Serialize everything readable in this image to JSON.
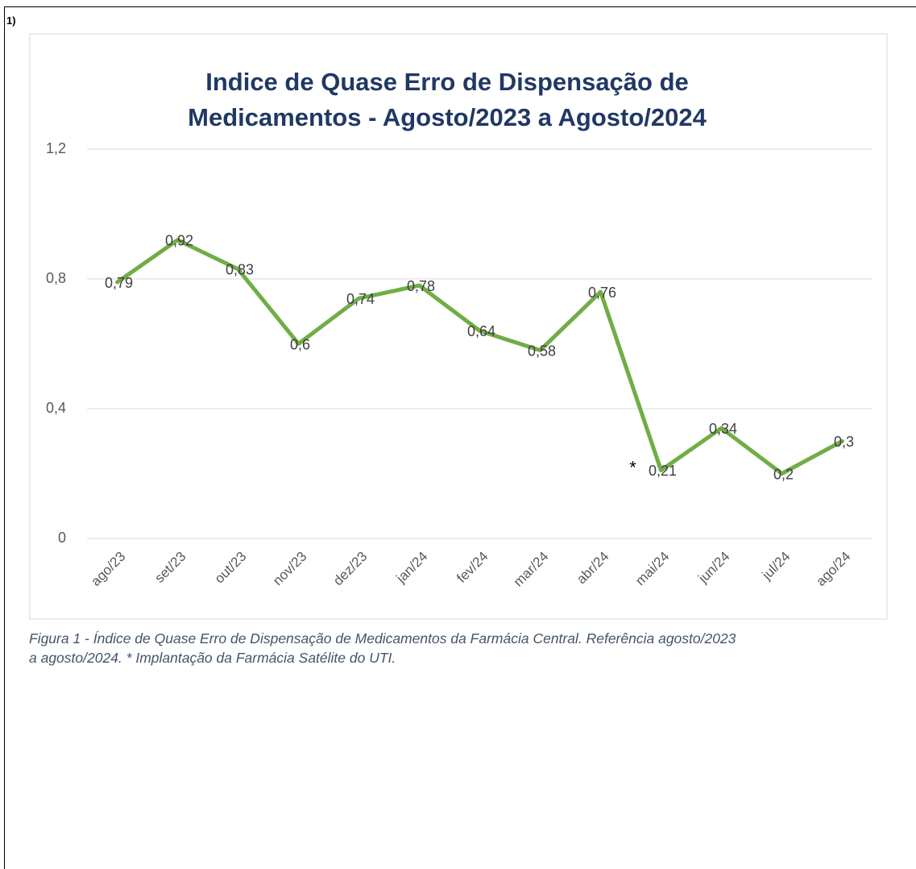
{
  "label": "1)",
  "chart_data": {
    "type": "line",
    "title": [
      "Indice de Quase Erro de Dispensação de",
      "Medicamentos - Agosto/2023 a Agosto/2024"
    ],
    "categories": [
      "ago/23",
      "set/23",
      "out/23",
      "nov/23",
      "dez/23",
      "jan/24",
      "fev/24",
      "mar/24",
      "abr/24",
      "mai/24",
      "jun/24",
      "jul/24",
      "ago/24"
    ],
    "values": [
      0.79,
      0.92,
      0.83,
      0.6,
      0.74,
      0.78,
      0.64,
      0.58,
      0.76,
      0.21,
      0.34,
      0.2,
      0.3
    ],
    "value_labels": [
      "0,79",
      "0,92",
      "0,83",
      "0,6",
      "0,74",
      "0,78",
      "0,64",
      "0,58",
      "0,76",
      "0,21",
      "0,34",
      "0,2",
      "0,3"
    ],
    "color": "#70ad47",
    "ylim": [
      0,
      1.2
    ],
    "yticks": [
      0,
      {
        "value": 0.4,
        "label": "0,4"
      },
      {
        "value": 0.8,
        "label": "0,8"
      },
      {
        "value": 1.2,
        "label": "1,2"
      }
    ],
    "grid": true,
    "annotation": "*"
  },
  "caption": [
    "Figura 1 - Índice de Quase Erro de Dispensação de Medicamentos da Farmácia Central. Referência agosto/2023",
    "a agosto/2024. * Implantação da Farmácia Satélite do UTI."
  ]
}
